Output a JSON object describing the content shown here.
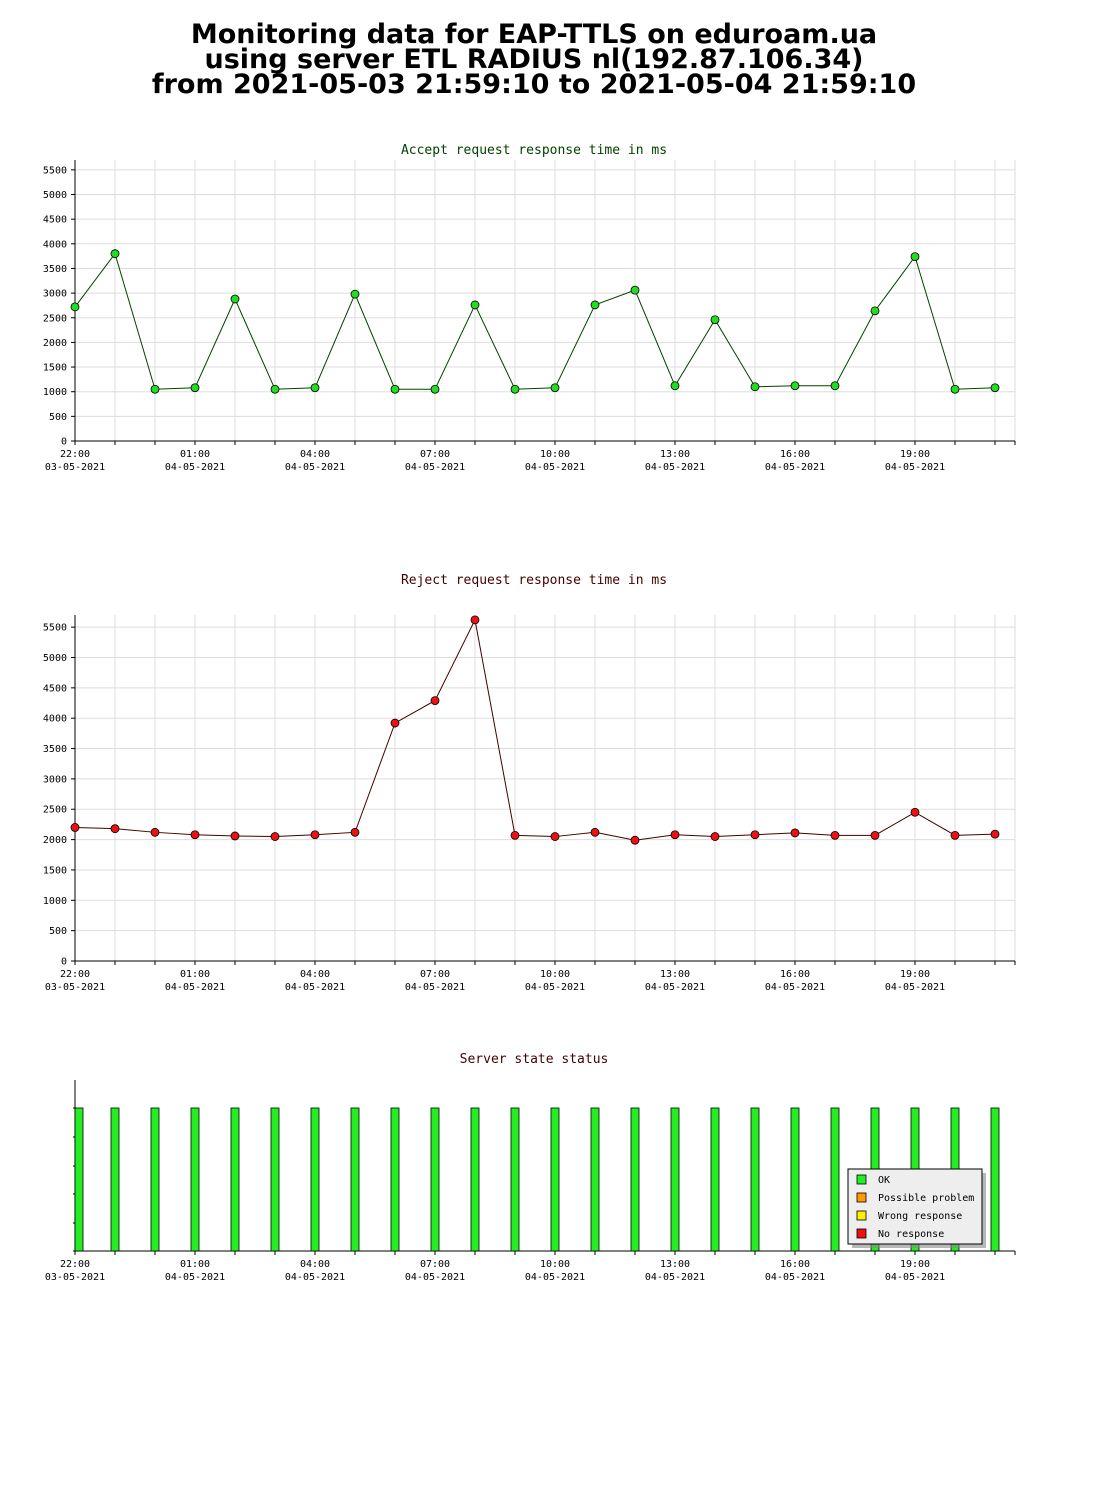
{
  "header": {
    "line1": "Monitoring data for EAP-TTLS on eduroam.ua",
    "line2": "using server ETL RADIUS nl(192.87.106.34)",
    "line3": "from 2021-05-03 21:59:10 to 2021-05-04 21:59:10"
  },
  "chart_data": [
    {
      "type": "line",
      "title": "Accept request response time in ms",
      "title_color": "#004400",
      "line_color": "#004400",
      "marker_color": "#22dd22",
      "grid": true,
      "ylim": [
        0,
        5700
      ],
      "yticks": [
        0,
        500,
        1000,
        1500,
        2000,
        2500,
        3000,
        3500,
        4000,
        4500,
        5000,
        5500
      ],
      "xticks": [
        {
          "time": "22:00",
          "date": "03-05-2021"
        },
        {
          "time": "01:00",
          "date": "04-05-2021"
        },
        {
          "time": "04:00",
          "date": "04-05-2021"
        },
        {
          "time": "07:00",
          "date": "04-05-2021"
        },
        {
          "time": "10:00",
          "date": "04-05-2021"
        },
        {
          "time": "13:00",
          "date": "04-05-2021"
        },
        {
          "time": "16:00",
          "date": "04-05-2021"
        },
        {
          "time": "19:00",
          "date": "04-05-2021"
        }
      ],
      "x": [
        "22:00",
        "23:00",
        "00:00",
        "01:00",
        "02:00",
        "03:00",
        "04:00",
        "05:00",
        "06:00",
        "07:00",
        "08:00",
        "09:00",
        "10:00",
        "11:00",
        "12:00",
        "13:00",
        "14:00",
        "15:00",
        "16:00",
        "17:00",
        "18:00",
        "19:00",
        "20:00",
        "21:00"
      ],
      "values": [
        2720,
        3800,
        1050,
        1080,
        2880,
        1050,
        1080,
        2980,
        1050,
        1050,
        2760,
        1050,
        1080,
        2760,
        3060,
        1120,
        2460,
        1100,
        1120,
        1120,
        2640,
        3740,
        1050,
        1080
      ]
    },
    {
      "type": "line",
      "title": "Reject request response time in ms",
      "title_color": "#440000",
      "line_color": "#440000",
      "marker_color": "#ee1111",
      "grid": true,
      "ylim": [
        0,
        5700
      ],
      "yticks": [
        0,
        500,
        1000,
        1500,
        2000,
        2500,
        3000,
        3500,
        4000,
        4500,
        5000,
        5500
      ],
      "xticks": [
        {
          "time": "22:00",
          "date": "03-05-2021"
        },
        {
          "time": "01:00",
          "date": "04-05-2021"
        },
        {
          "time": "04:00",
          "date": "04-05-2021"
        },
        {
          "time": "07:00",
          "date": "04-05-2021"
        },
        {
          "time": "10:00",
          "date": "04-05-2021"
        },
        {
          "time": "13:00",
          "date": "04-05-2021"
        },
        {
          "time": "16:00",
          "date": "04-05-2021"
        },
        {
          "time": "19:00",
          "date": "04-05-2021"
        }
      ],
      "x": [
        "22:00",
        "23:00",
        "00:00",
        "01:00",
        "02:00",
        "03:00",
        "04:00",
        "05:00",
        "06:00",
        "07:00",
        "08:00",
        "09:00",
        "10:00",
        "11:00",
        "12:00",
        "13:00",
        "14:00",
        "15:00",
        "16:00",
        "17:00",
        "18:00",
        "19:00",
        "20:00",
        "21:00"
      ],
      "values": [
        2200,
        2180,
        2120,
        2080,
        2060,
        2050,
        2080,
        2120,
        3920,
        4290,
        5620,
        2070,
        2050,
        2120,
        1990,
        2080,
        2050,
        2080,
        2110,
        2070,
        2070,
        2450,
        2070,
        2090
      ]
    },
    {
      "type": "bar",
      "title": "Server state status",
      "title_color": "#440000",
      "xticks": [
        {
          "time": "22:00",
          "date": "03-05-2021"
        },
        {
          "time": "01:00",
          "date": "04-05-2021"
        },
        {
          "time": "04:00",
          "date": "04-05-2021"
        },
        {
          "time": "07:00",
          "date": "04-05-2021"
        },
        {
          "time": "10:00",
          "date": "04-05-2021"
        },
        {
          "time": "13:00",
          "date": "04-05-2021"
        },
        {
          "time": "16:00",
          "date": "04-05-2021"
        },
        {
          "time": "19:00",
          "date": "04-05-2021"
        }
      ],
      "x": [
        "22:00",
        "23:00",
        "00:00",
        "01:00",
        "02:00",
        "03:00",
        "04:00",
        "05:00",
        "06:00",
        "07:00",
        "08:00",
        "09:00",
        "10:00",
        "11:00",
        "12:00",
        "13:00",
        "14:00",
        "15:00",
        "16:00",
        "17:00",
        "18:00",
        "19:00",
        "20:00",
        "21:00"
      ],
      "states": [
        "OK",
        "OK",
        "OK",
        "OK",
        "OK",
        "OK",
        "OK",
        "OK",
        "OK",
        "OK",
        "OK",
        "OK",
        "OK",
        "OK",
        "OK",
        "OK",
        "OK",
        "OK",
        "OK",
        "OK",
        "OK",
        "OK",
        "OK",
        "OK"
      ],
      "legend_placement": "bottom-right",
      "legend": [
        {
          "label": "OK",
          "color": "#22ee22"
        },
        {
          "label": "Possible problem",
          "color": "#ff9900"
        },
        {
          "label": "Wrong response",
          "color": "#ffee00"
        },
        {
          "label": "No response",
          "color": "#ee1111"
        }
      ]
    }
  ]
}
